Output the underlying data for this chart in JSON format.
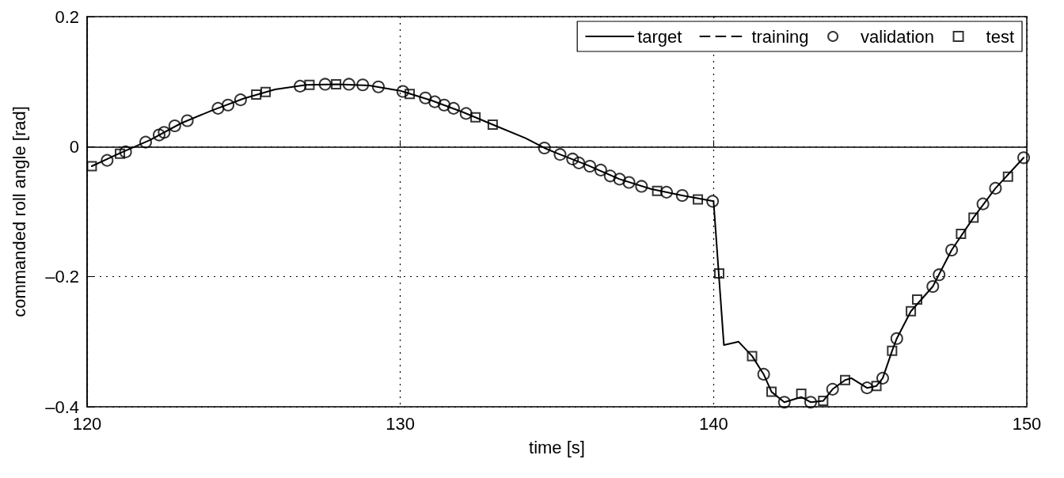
{
  "chart_data": {
    "type": "line",
    "xlabel": "time [s]",
    "ylabel": "commanded roll angle [rad]",
    "xlim": [
      120,
      150
    ],
    "xticks": [
      120,
      130,
      140,
      150
    ],
    "ylim": [
      -0.4,
      0.2
    ],
    "yticks": [
      {
        "value": -0.4,
        "label": "–0.4"
      },
      {
        "value": -0.2,
        "label": "–0.2"
      },
      0,
      0.2
    ],
    "grid": true,
    "legend": "top right",
    "series": [
      {
        "name": "target",
        "color": "#000000",
        "marker": "none",
        "line_style": "solid",
        "x": [
          120.15,
          121,
          122,
          123,
          124,
          125,
          126,
          127,
          128,
          129,
          130,
          131,
          132,
          133,
          134,
          134.6,
          135,
          136,
          137,
          138,
          139,
          140,
          140.33,
          140.8,
          141.23,
          141.6,
          141.85,
          142.26,
          142.8,
          143.1,
          143.5,
          143.8,
          144.2,
          144.4,
          144.9,
          145.2,
          145.4,
          145.7,
          145.85,
          146.3,
          147,
          147.6,
          148.3,
          149,
          149.9
        ],
        "values": [
          -0.03,
          -0.011,
          0.01,
          0.036,
          0.056,
          0.074,
          0.088,
          0.095,
          0.096,
          0.094,
          0.086,
          0.071,
          0.053,
          0.033,
          0.013,
          -0.002,
          -0.01,
          -0.029,
          -0.05,
          -0.065,
          -0.075,
          -0.084,
          -0.305,
          -0.3,
          -0.322,
          -0.35,
          -0.377,
          -0.393,
          -0.385,
          -0.393,
          -0.391,
          -0.373,
          -0.359,
          -0.356,
          -0.371,
          -0.368,
          -0.356,
          -0.314,
          -0.295,
          -0.253,
          -0.215,
          -0.159,
          -0.109,
          -0.064,
          -0.017
        ]
      },
      {
        "name": "training",
        "color": "#000000",
        "marker": "none",
        "line_style": "dashed"
      },
      {
        "name": "validation",
        "type": "scatter",
        "color": "#000000",
        "marker": "circle",
        "x": [
          120.64,
          121.23,
          121.87,
          122.3,
          122.46,
          122.8,
          123.2,
          124.18,
          124.5,
          124.9,
          126.8,
          127.6,
          128.36,
          128.8,
          129.3,
          130.08,
          130.8,
          131.1,
          131.4,
          131.7,
          132.1,
          134.6,
          135.1,
          135.5,
          135.7,
          136.05,
          136.4,
          136.7,
          137,
          137.3,
          137.7,
          138.5,
          139,
          139.97,
          141.6,
          142.26,
          143.1,
          143.8,
          144.9,
          145.4,
          145.85,
          147,
          147.2,
          147.6,
          148.6,
          149,
          149.9
        ],
        "values": [
          -0.021,
          -0.008,
          0.007,
          0.018,
          0.022,
          0.032,
          0.04,
          0.059,
          0.064,
          0.072,
          0.093,
          0.096,
          0.096,
          0.095,
          0.092,
          0.085,
          0.075,
          0.069,
          0.064,
          0.059,
          0.051,
          -0.002,
          -0.012,
          -0.019,
          -0.025,
          -0.03,
          -0.036,
          -0.045,
          -0.05,
          -0.055,
          -0.061,
          -0.07,
          -0.075,
          -0.084,
          -0.35,
          -0.393,
          -0.393,
          -0.373,
          -0.371,
          -0.356,
          -0.295,
          -0.215,
          -0.197,
          -0.159,
          -0.088,
          -0.064,
          -0.017
        ]
      },
      {
        "name": "test",
        "type": "scatter",
        "color": "#000000",
        "marker": "square",
        "x": [
          120.15,
          121.05,
          125.4,
          125.7,
          127.1,
          127.95,
          130.3,
          132.4,
          132.95,
          138.2,
          139.5,
          140.18,
          141.23,
          141.85,
          142.8,
          143.5,
          144.2,
          145.2,
          145.7,
          146.3,
          146.5,
          147.9,
          148.3,
          149.4
        ],
        "values": [
          -0.03,
          -0.011,
          0.08,
          0.084,
          0.095,
          0.096,
          0.081,
          0.045,
          0.034,
          -0.068,
          -0.081,
          -0.195,
          -0.322,
          -0.377,
          -0.38,
          -0.391,
          -0.359,
          -0.368,
          -0.314,
          -0.253,
          -0.235,
          -0.134,
          -0.109,
          -0.046
        ]
      }
    ]
  }
}
